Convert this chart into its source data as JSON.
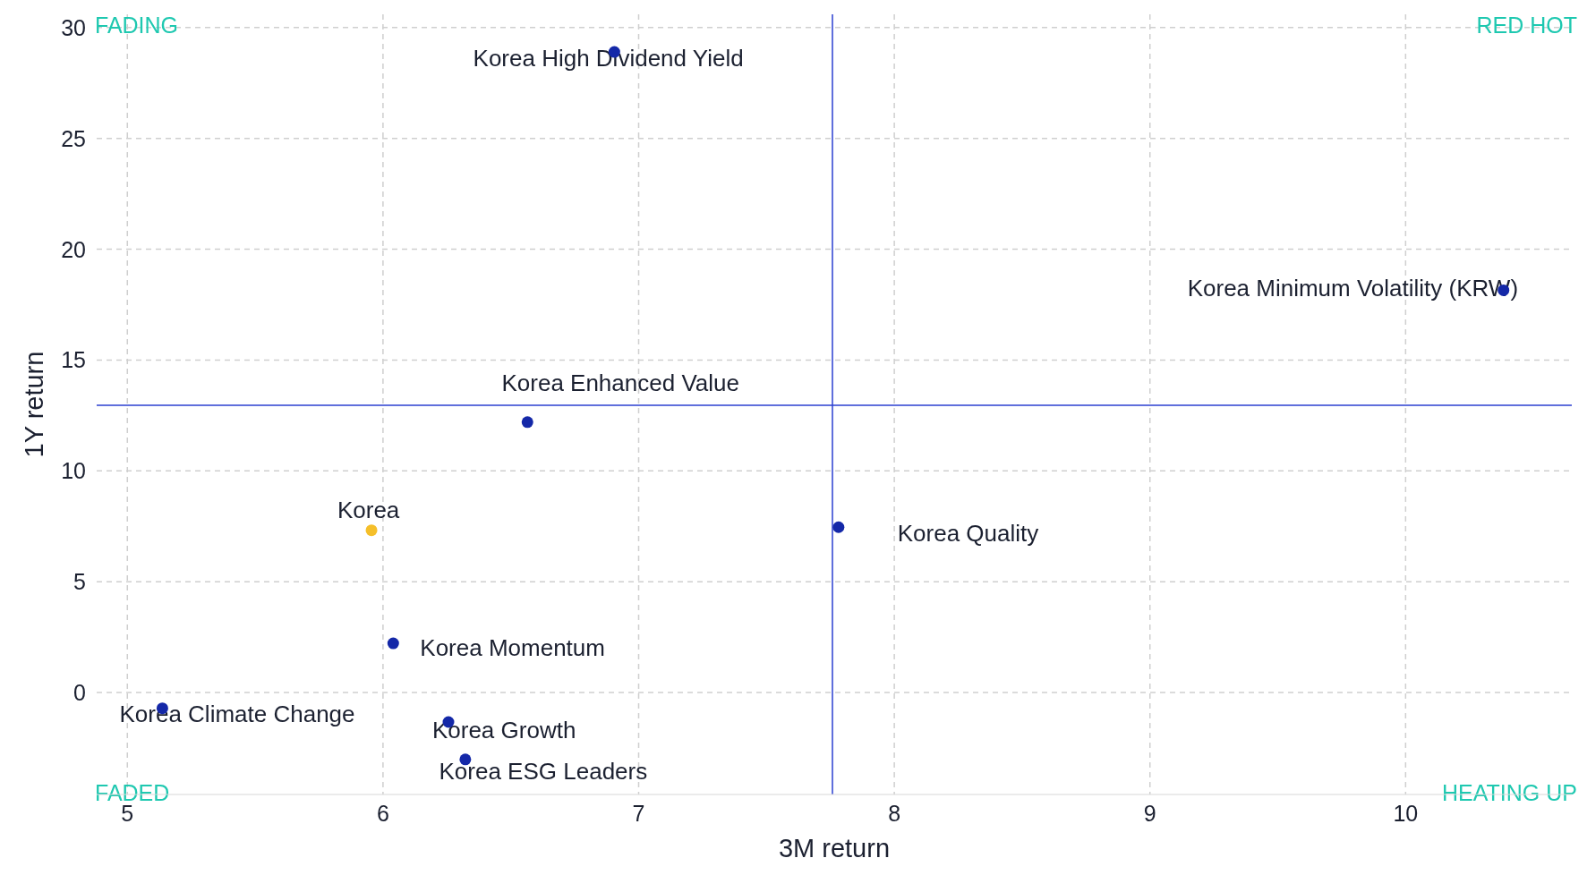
{
  "chart_data": {
    "type": "scatter",
    "xlabel": "3M return",
    "ylabel": "1Y return",
    "xlim": [
      4.88,
      10.65
    ],
    "ylim": [
      -4.6,
      30.6
    ],
    "xticks": [
      5,
      6,
      7,
      8,
      9,
      10
    ],
    "yticks": [
      0,
      5,
      10,
      15,
      20,
      25,
      30
    ],
    "grid": true,
    "marker": "circle",
    "series": [
      {
        "name": "Korea High Dividend Yield",
        "color": "#1428a8",
        "x": [
          6.905
        ],
        "values": [
          28.9
        ]
      },
      {
        "name": "Korea Minimum Volatility (KRW)",
        "color": "#1428a8",
        "x": [
          10.383
        ],
        "values": [
          18.15
        ]
      },
      {
        "name": "Korea Enhanced Value",
        "color": "#1428a8",
        "x": [
          6.565
        ],
        "values": [
          12.2
        ]
      },
      {
        "name": "Korea",
        "color": "#f5bf2a",
        "x": [
          5.955
        ],
        "values": [
          7.32
        ]
      },
      {
        "name": "Korea Quality",
        "color": "#1428a8",
        "x": [
          7.782
        ],
        "values": [
          7.46
        ]
      },
      {
        "name": "Korea Momentum",
        "color": "#1428a8",
        "x": [
          6.04
        ],
        "values": [
          2.22
        ]
      },
      {
        "name": "Korea Climate Change",
        "color": "#1428a8",
        "x": [
          5.137
        ],
        "values": [
          -0.71
        ]
      },
      {
        "name": "Korea Growth",
        "color": "#1428a8",
        "x": [
          6.256
        ],
        "values": [
          -1.33
        ]
      },
      {
        "name": "Korea ESG Leaders",
        "color": "#1428a8",
        "x": [
          6.322
        ],
        "values": [
          -3.02
        ]
      }
    ],
    "ref_lines": [
      {
        "axis": "x",
        "value": 7.758,
        "color": "#2b3fd0"
      },
      {
        "axis": "y",
        "value": 12.96,
        "color": "#2b3fd0"
      }
    ],
    "annotations": [
      "FADING",
      "RED HOT",
      "FADED",
      "HEATING UP"
    ]
  }
}
